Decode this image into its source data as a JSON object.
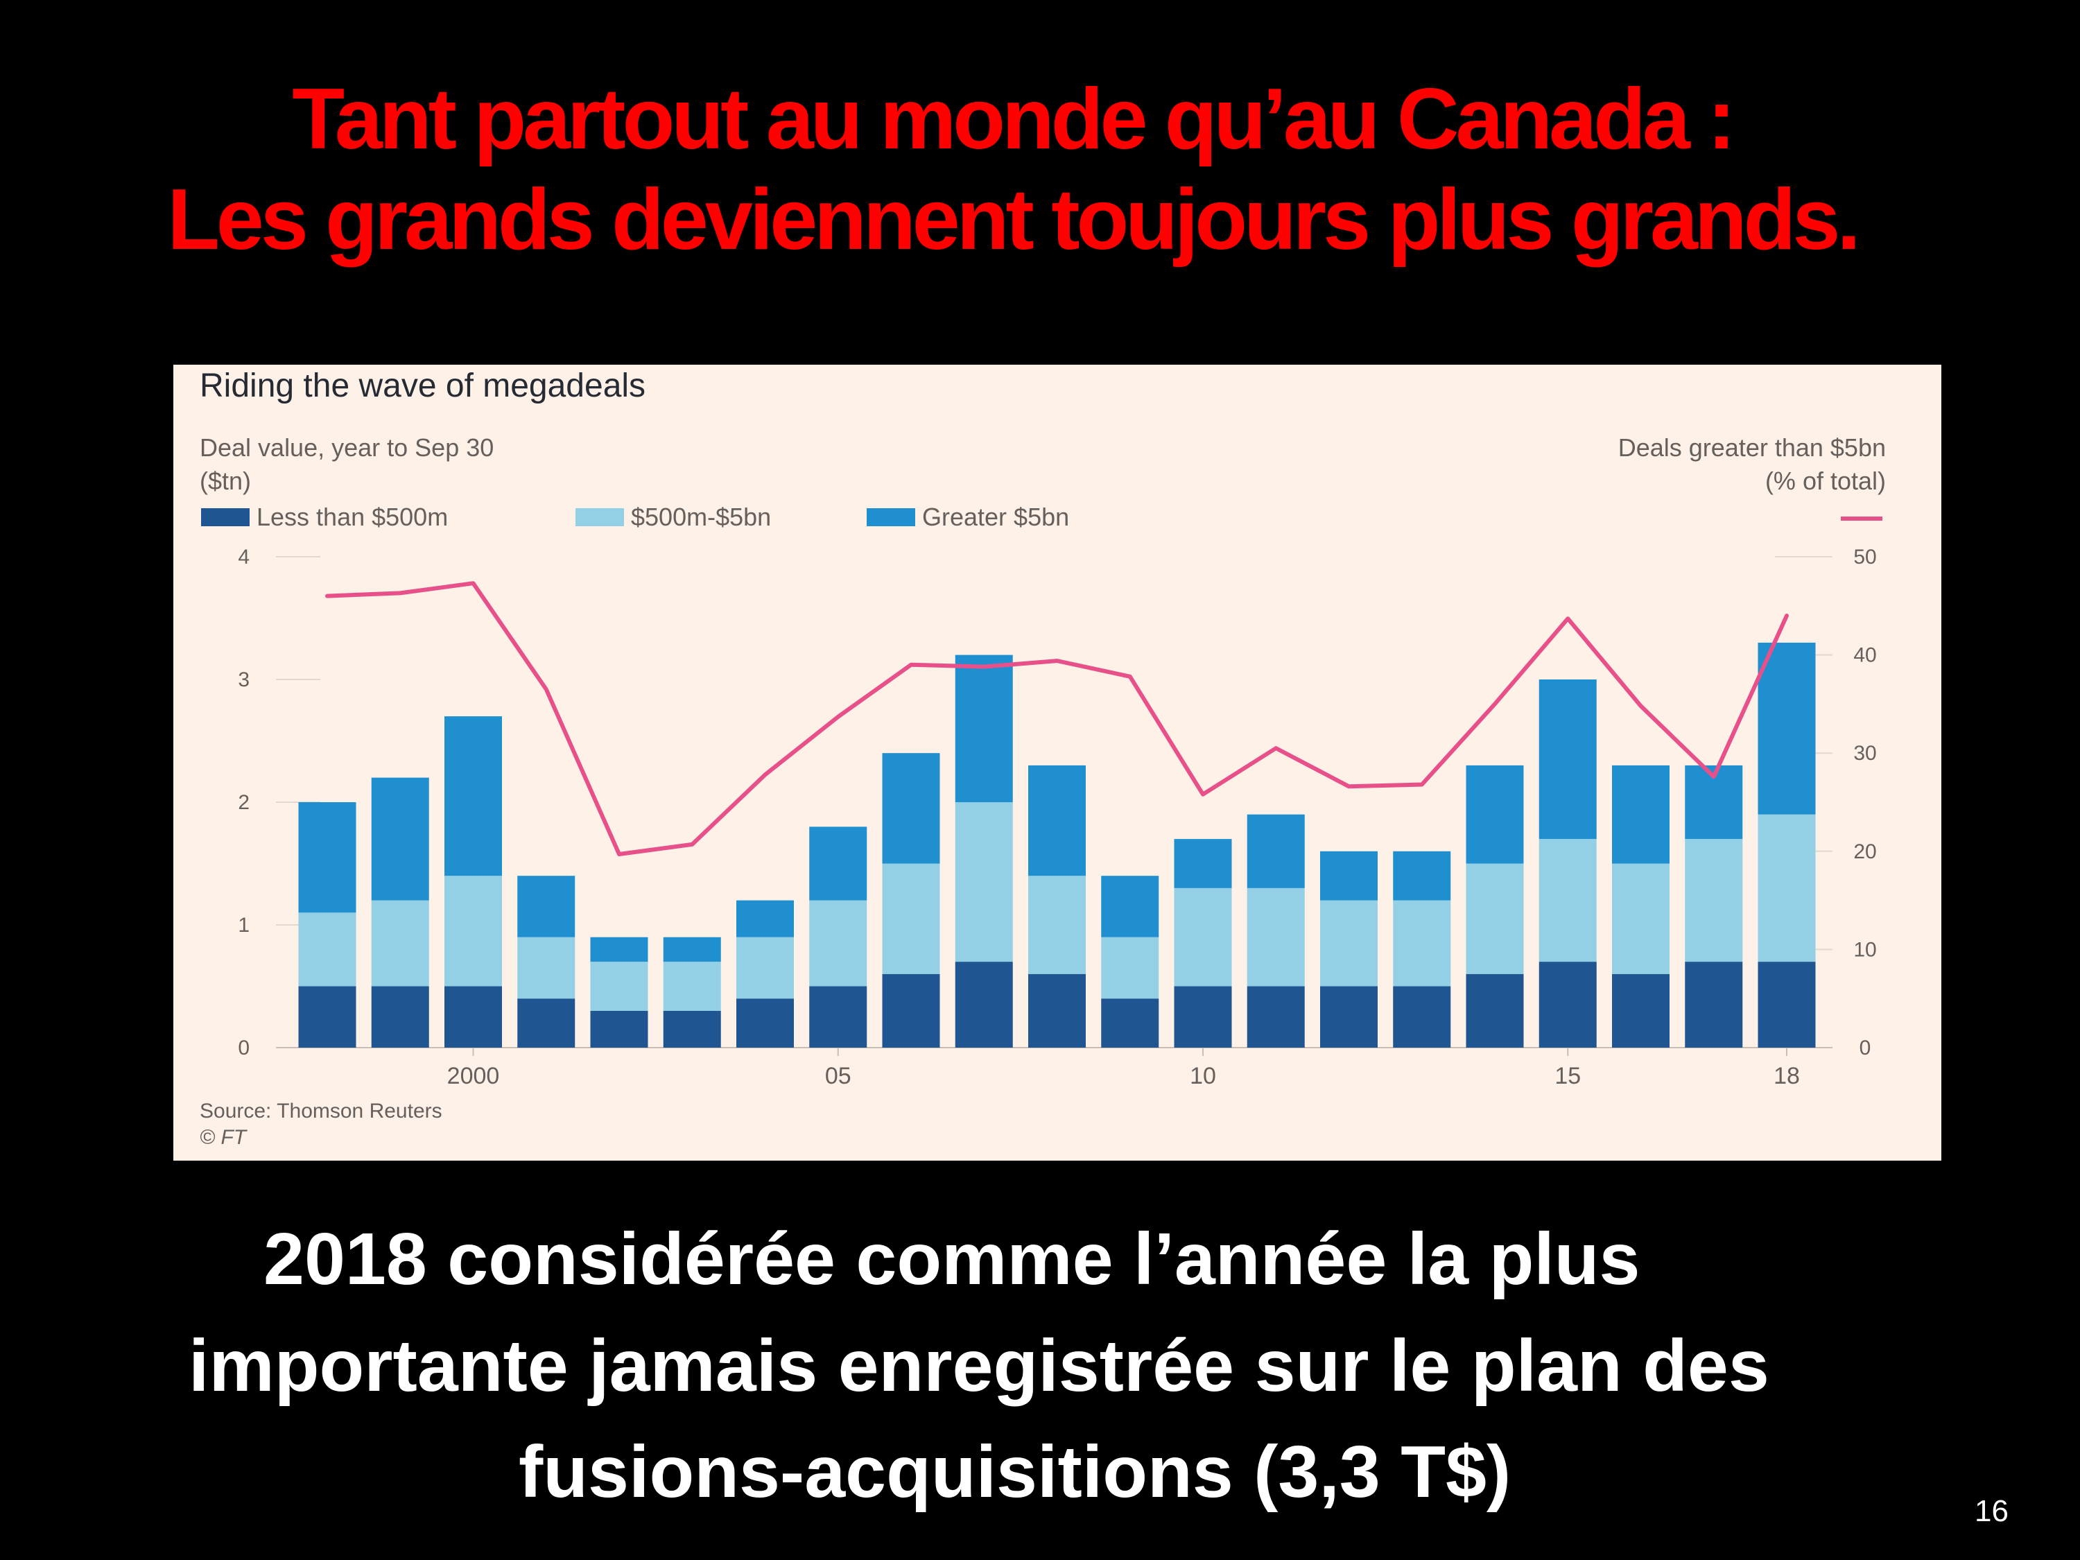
{
  "slide": {
    "title_line1": "Tant partout au monde qu’au Canada :",
    "title_line2": "Les grands deviennent toujours plus grands.",
    "caption_line1": "2018 considérée comme l’année la plus",
    "caption_line2": "importante jamais enregistrée sur le plan des",
    "caption_line3": "fusions-acquisitions (3,3 T$)",
    "page_number": "16"
  },
  "chart_data": {
    "type": "bar",
    "stacked": true,
    "title": "Riding the wave of megadeals",
    "left_axis_label_line1": "Deal value, year to Sep 30",
    "left_axis_label_line2": "($tn)",
    "right_axis_label_line1": "Deals greater than $5bn",
    "right_axis_label_line2": "(% of total)",
    "categories": [
      "1998",
      "1999",
      "2000",
      "2001",
      "2002",
      "2003",
      "2004",
      "2005",
      "2006",
      "2007",
      "2008",
      "2009",
      "2010",
      "2011",
      "2012",
      "2013",
      "2014",
      "2015",
      "2016",
      "2017",
      "2018"
    ],
    "x_tick_labels": [
      {
        "category": "2000",
        "label": "2000"
      },
      {
        "category": "2005",
        "label": "05"
      },
      {
        "category": "2010",
        "label": "10"
      },
      {
        "category": "2015",
        "label": "15"
      },
      {
        "category": "2018",
        "label": "18"
      }
    ],
    "series": [
      {
        "name": "Less than $500m",
        "color": "#1f5591",
        "values": [
          0.5,
          0.5,
          0.5,
          0.4,
          0.3,
          0.3,
          0.4,
          0.5,
          0.6,
          0.7,
          0.6,
          0.4,
          0.5,
          0.5,
          0.5,
          0.5,
          0.6,
          0.7,
          0.6,
          0.7,
          0.7
        ]
      },
      {
        "name": "$500m-$5bn",
        "color": "#93cfe5",
        "values": [
          0.6,
          0.7,
          0.9,
          0.5,
          0.4,
          0.4,
          0.5,
          0.7,
          0.9,
          1.3,
          0.8,
          0.5,
          0.8,
          0.8,
          0.7,
          0.7,
          0.9,
          1.0,
          0.9,
          1.0,
          1.2
        ]
      },
      {
        "name": "Greater $5bn",
        "color": "#208fd0",
        "values": [
          0.9,
          1.0,
          1.3,
          0.5,
          0.2,
          0.2,
          0.3,
          0.6,
          0.9,
          1.2,
          0.9,
          0.5,
          0.4,
          0.6,
          0.4,
          0.4,
          0.8,
          1.3,
          0.8,
          0.6,
          1.4
        ]
      }
    ],
    "line": {
      "name": "Deals greater than $5bn (% of total)",
      "color": "#e8508a",
      "axis": "right",
      "values": [
        46,
        46.3,
        47.3,
        36.5,
        19.7,
        20.7,
        27.8,
        33.7,
        39,
        38.8,
        39.4,
        37.8,
        25.8,
        30.5,
        26.6,
        26.8,
        35,
        43.7,
        34.8,
        27.6,
        44
      ]
    },
    "ylim": [
      0,
      4
    ],
    "y_ticks": [
      "0",
      "1",
      "2",
      "3",
      "4"
    ],
    "y2lim": [
      0,
      50
    ],
    "y2_ticks": [
      "0",
      "10",
      "20",
      "30",
      "40",
      "50"
    ],
    "grid": true,
    "legend_position": "top-left",
    "source": "Source: Thomson Reuters",
    "copyright": "© FT"
  }
}
